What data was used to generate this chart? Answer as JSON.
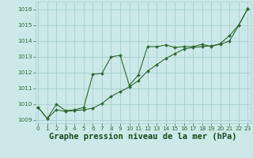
{
  "line1_x": [
    0,
    1,
    2,
    3,
    4,
    5,
    6,
    7,
    8,
    9,
    10,
    11,
    12,
    13,
    14,
    15,
    16,
    17,
    18,
    19,
    20,
    21,
    22,
    23
  ],
  "line1_y": [
    1009.8,
    1009.1,
    1010.0,
    1009.6,
    1009.65,
    1009.8,
    1011.9,
    1011.95,
    1013.0,
    1013.1,
    1011.2,
    1011.85,
    1013.65,
    1013.65,
    1013.75,
    1013.6,
    1013.65,
    1013.65,
    1013.8,
    1013.65,
    1013.85,
    1014.35,
    1015.0,
    1016.05
  ],
  "line2_x": [
    0,
    1,
    2,
    3,
    4,
    5,
    6,
    7,
    8,
    9,
    10,
    11,
    12,
    13,
    14,
    15,
    16,
    17,
    18,
    19,
    20,
    21,
    22,
    23
  ],
  "line2_y": [
    1009.8,
    1009.1,
    1009.65,
    1009.55,
    1009.6,
    1009.65,
    1009.75,
    1010.05,
    1010.5,
    1010.8,
    1011.1,
    1011.5,
    1012.1,
    1012.5,
    1012.9,
    1013.2,
    1013.5,
    1013.6,
    1013.65,
    1013.7,
    1013.8,
    1014.0,
    1015.0,
    1016.05
  ],
  "line_color": "#2d6a2d",
  "bg_color": "#cce8e8",
  "grid_color": "#a8d0d0",
  "xlabel": "Graphe pression niveau de la mer (hPa)",
  "xlabel_color": "#1a4a1a",
  "ylim": [
    1008.8,
    1016.5
  ],
  "yticks": [
    1009,
    1010,
    1011,
    1012,
    1013,
    1014,
    1015,
    1016
  ],
  "xlim": [
    -0.3,
    23.3
  ],
  "xticks": [
    0,
    1,
    2,
    3,
    4,
    5,
    6,
    7,
    8,
    9,
    10,
    11,
    12,
    13,
    14,
    15,
    16,
    17,
    18,
    19,
    20,
    21,
    22,
    23
  ]
}
